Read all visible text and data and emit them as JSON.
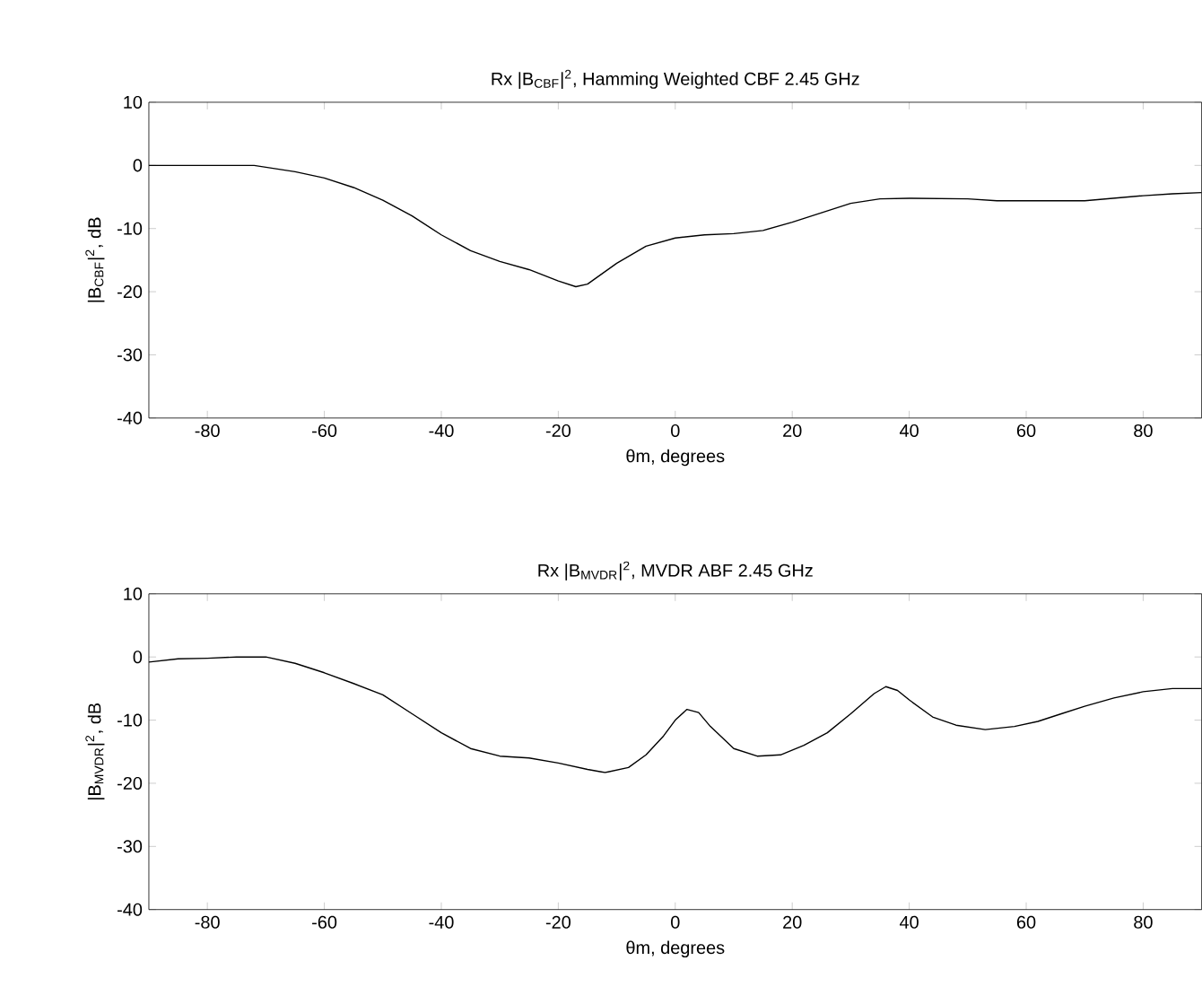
{
  "chart_data": [
    {
      "type": "line",
      "title": "Rx |B$_{CBF}$|$^{2}$, Hamming Weighted CBF 2.45 GHz",
      "xlabel": "θm, degrees",
      "ylabel": "|B$_{CBF}$|$^{2}$, dB",
      "xlim": [
        -90,
        90
      ],
      "ylim": [
        -40,
        10
      ],
      "xticks": [
        -80,
        -60,
        -40,
        -20,
        0,
        20,
        40,
        60,
        80
      ],
      "yticks": [
        -40,
        -30,
        -20,
        -10,
        0,
        10
      ],
      "x": [
        -90,
        -72,
        -65,
        -60,
        -55,
        -50,
        -45,
        -40,
        -35,
        -30,
        -25,
        -20,
        -17,
        -15,
        -10,
        -5,
        0,
        5,
        10,
        15,
        20,
        25,
        30,
        35,
        40,
        50,
        55,
        70,
        80,
        85,
        90
      ],
      "series": [
        {
          "color": "#000000",
          "values": [
            0,
            0,
            -1,
            -2,
            -3.5,
            -5.5,
            -8,
            -11,
            -13.5,
            -15.2,
            -16.5,
            -18.3,
            -19.2,
            -18.8,
            -15.5,
            -12.8,
            -11.5,
            -11,
            -10.8,
            -10.3,
            -9,
            -7.5,
            -6,
            -5.3,
            -5.2,
            -5.3,
            -5.6,
            -5.6,
            -4.8,
            -4.5,
            -4.3
          ]
        }
      ]
    },
    {
      "type": "line",
      "title": "Rx |B$_{MVDR}$|$^{2}$, MVDR ABF 2.45 GHz",
      "xlabel": "θm, degrees",
      "ylabel": "|B$_{MVDR}$|$^{2}$, dB",
      "xlim": [
        -90,
        90
      ],
      "ylim": [
        -40,
        10
      ],
      "xticks": [
        -80,
        -60,
        -40,
        -20,
        0,
        20,
        40,
        60,
        80
      ],
      "yticks": [
        -40,
        -30,
        -20,
        -10,
        0,
        10
      ],
      "x": [
        -90,
        -85,
        -80,
        -75,
        -70,
        -65,
        -60,
        -55,
        -50,
        -45,
        -40,
        -35,
        -30,
        -25,
        -20,
        -15,
        -12,
        -8,
        -5,
        -2,
        0,
        2,
        4,
        6,
        10,
        14,
        18,
        22,
        26,
        30,
        34,
        36,
        38,
        40,
        44,
        48,
        53,
        58,
        62,
        66,
        70,
        75,
        80,
        85,
        90
      ],
      "series": [
        {
          "color": "#000000",
          "values": [
            -0.8,
            -0.3,
            -0.2,
            0,
            0,
            -1,
            -2.5,
            -4.2,
            -6,
            -9,
            -12,
            -14.5,
            -15.7,
            -16,
            -16.8,
            -17.8,
            -18.3,
            -17.5,
            -15.5,
            -12.5,
            -10,
            -8.3,
            -8.8,
            -11,
            -14.5,
            -15.7,
            -15.5,
            -14,
            -12,
            -9,
            -5.8,
            -4.7,
            -5.3,
            -6.8,
            -9.5,
            -10.8,
            -11.5,
            -11,
            -10.2,
            -9,
            -7.8,
            -6.5,
            -5.5,
            -5,
            -5
          ]
        }
      ]
    }
  ]
}
